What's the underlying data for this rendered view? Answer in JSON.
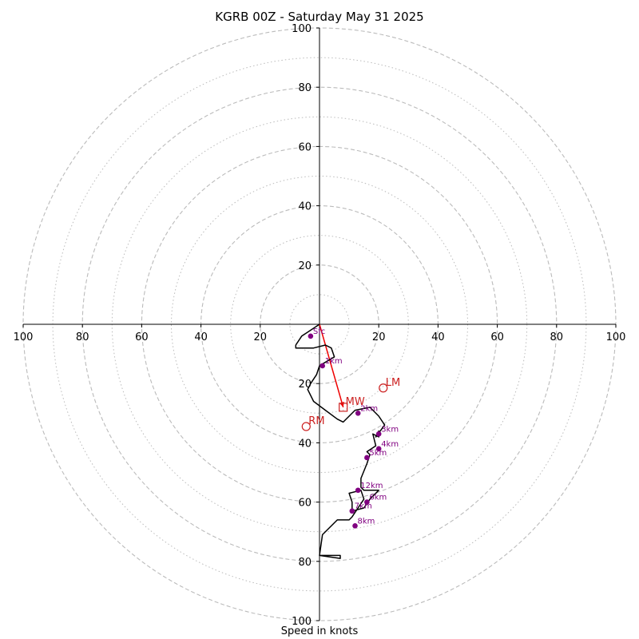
{
  "chart_data": {
    "type": "scatter",
    "title": "KGRB 00Z - Saturday May 31 2025",
    "xlabel": "Speed in knots",
    "ylabel": "",
    "xlim": [
      -100,
      100
    ],
    "ylim": [
      -100,
      100
    ],
    "ticks": [
      "100",
      "80",
      "60",
      "40",
      "20",
      "20",
      "40",
      "60",
      "80",
      "100"
    ],
    "y_ticks_top": [
      "20",
      "40",
      "60",
      "80",
      "100"
    ],
    "y_ticks_bottom": [
      "20",
      "40",
      "60",
      "80",
      "100"
    ],
    "rings_major": [
      20,
      40,
      60,
      80,
      100
    ],
    "rings_minor": [
      10,
      30,
      50,
      70,
      90
    ],
    "grid": true,
    "colors": {
      "hodograph": "#000000",
      "heights": "#800080",
      "motion": "#cc2020",
      "grid": "#bbbbbb"
    },
    "hodograph": [
      [
        0,
        0
      ],
      [
        -6,
        -4
      ],
      [
        -8,
        -7
      ],
      [
        -8,
        -8
      ],
      [
        -5,
        -8
      ],
      [
        -3,
        -8
      ],
      [
        -2,
        -8
      ],
      [
        2,
        -7
      ],
      [
        4,
        -8
      ],
      [
        5,
        -11
      ],
      [
        0,
        -14
      ],
      [
        -1,
        -17
      ],
      [
        -3,
        -20
      ],
      [
        -4,
        -22
      ],
      [
        -2,
        -26
      ],
      [
        2,
        -29
      ],
      [
        6,
        -32
      ],
      [
        8,
        -33
      ],
      [
        10,
        -31
      ],
      [
        12,
        -29
      ],
      [
        17,
        -28
      ],
      [
        20,
        -31
      ],
      [
        22,
        -34
      ],
      [
        19,
        -38
      ],
      [
        20,
        -36
      ],
      [
        20,
        -38
      ],
      [
        18,
        -37
      ],
      [
        19,
        -41
      ],
      [
        16,
        -43
      ],
      [
        17,
        -44
      ],
      [
        16,
        -47
      ],
      [
        14,
        -52
      ],
      [
        14,
        -55
      ],
      [
        15,
        -56
      ],
      [
        20,
        -56
      ],
      [
        17,
        -59
      ],
      [
        15,
        -62
      ],
      [
        11,
        -63
      ],
      [
        11,
        -60
      ],
      [
        10,
        -57
      ],
      [
        14,
        -56
      ],
      [
        15,
        -59
      ],
      [
        11,
        -65
      ],
      [
        10,
        -66
      ],
      [
        6,
        -66
      ],
      [
        1,
        -71
      ],
      [
        0,
        -78
      ],
      [
        7,
        -78
      ],
      [
        7,
        -79
      ],
      [
        0,
        -78
      ]
    ],
    "heights": [
      {
        "label": "Sfc",
        "u": -3,
        "v": -4
      },
      {
        "label": "1km",
        "u": 1,
        "v": -14
      },
      {
        "label": "2km",
        "u": 13,
        "v": -30
      },
      {
        "label": "3km",
        "u": 20,
        "v": -37
      },
      {
        "label": "4km",
        "u": 20,
        "v": -42
      },
      {
        "label": "5km",
        "u": 16,
        "v": -45
      },
      {
        "label": "6km",
        "u": 16,
        "v": -60
      },
      {
        "label": "7km",
        "u": 11,
        "v": -63
      },
      {
        "label": "8km",
        "u": 12,
        "v": -68
      },
      {
        "label": "12km",
        "u": 13,
        "v": -56
      }
    ],
    "motion_points": [
      {
        "label": "LM",
        "u": 21.5,
        "v": -21.5,
        "marker": "circle"
      },
      {
        "label": "RM",
        "u": -4.5,
        "v": -34.5,
        "marker": "circle"
      },
      {
        "label": "MW",
        "u": 8,
        "v": -28,
        "marker": "square"
      }
    ],
    "motion_vector": {
      "from": [
        0,
        0
      ],
      "to": [
        8,
        -28
      ]
    }
  }
}
